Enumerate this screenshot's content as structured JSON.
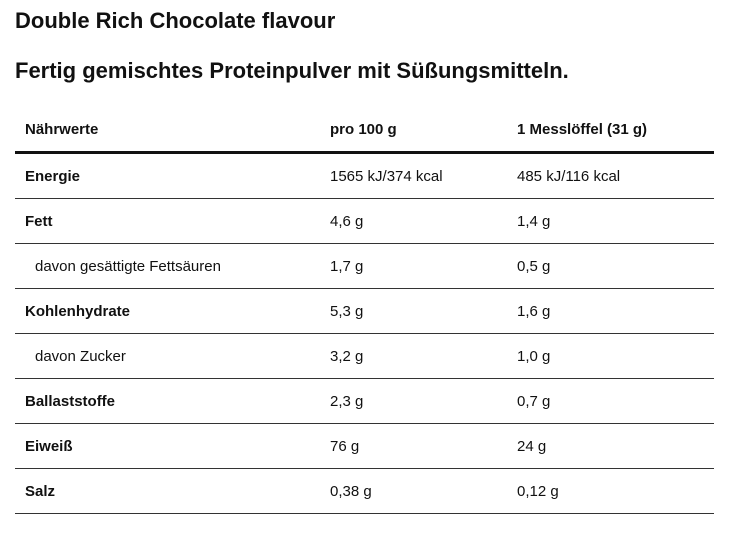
{
  "header": {
    "title": "Double Rich Chocolate flavour",
    "subtitle": "Fertig gemischtes Proteinpulver mit Süßungsmitteln."
  },
  "table": {
    "columns": [
      "Nährwerte",
      "pro 100 g",
      "1 Messlöffel (31 g)"
    ],
    "rows": [
      [
        "Energie",
        "1565 kJ/374 kcal",
        "485 kJ/116 kcal"
      ],
      [
        "Fett",
        "4,6 g",
        "1,4 g"
      ],
      [
        "davon gesättigte Fettsäuren",
        "1,7 g",
        "0,5 g"
      ],
      [
        "Kohlenhydrate",
        "5,3 g",
        "1,6 g"
      ],
      [
        "davon Zucker",
        "3,2 g",
        "1,0 g"
      ],
      [
        "Ballaststoffe",
        "2,3 g",
        "0,7 g"
      ],
      [
        "Eiweiß",
        "76 g",
        "24 g"
      ],
      [
        "Salz",
        "0,38 g",
        "0,12 g"
      ]
    ]
  }
}
